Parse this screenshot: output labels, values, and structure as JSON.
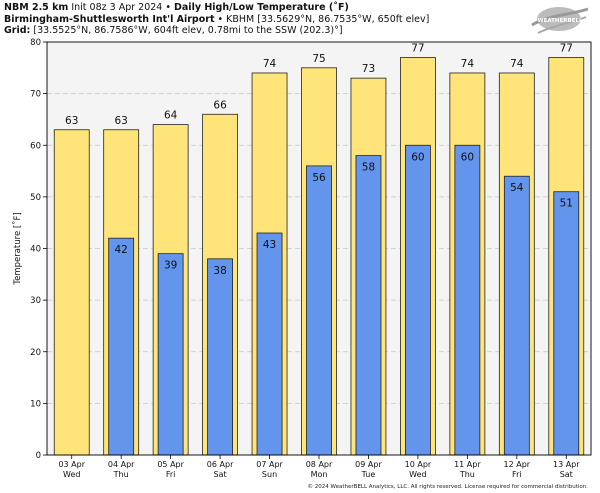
{
  "header": {
    "line1_bold": "NBM 2.5 km",
    "line1_init": "Init 08z 3 Apr 2024",
    "line1_sep": "•",
    "line1_title": "Daily High/Low Temperature (˚F)",
    "line2_bold": "Birmingham-Shuttlesworth Int'l Airport",
    "line2_sep": "•",
    "line2_rest": "KBHM [33.5629°N, 86.7535°W, 650ft elev]",
    "line3_bold": "Grid:",
    "line3_rest": "[33.5525°N, 86.7586°W, 604ft elev, 0.78mi to the SSW (202.3)°]"
  },
  "logo": {
    "text": "WEATHERBELL"
  },
  "copyright": "© 2024 WeatherBELL Analytics, LLC. All rights reserved. License required for commercial distribution.",
  "colors": {
    "high": "#ffe47a",
    "low": "#6495ed",
    "plot_bg": "#f4f4f4",
    "grid": "#c8c8c8"
  },
  "chart_data": {
    "type": "bar",
    "ylabel": "Temperature [˚F]",
    "ylim": [
      0,
      80
    ],
    "yticks": [
      0,
      10,
      20,
      30,
      40,
      50,
      60,
      70,
      80
    ],
    "grid": true,
    "categories": [
      "03 Apr",
      "04 Apr",
      "05 Apr",
      "06 Apr",
      "07 Apr",
      "08 Apr",
      "09 Apr",
      "10 Apr",
      "11 Apr",
      "12 Apr",
      "13 Apr"
    ],
    "days": [
      "Wed",
      "Thu",
      "Fri",
      "Sat",
      "Sun",
      "Mon",
      "Tue",
      "Wed",
      "Thu",
      "Fri",
      "Sat"
    ],
    "series": [
      {
        "values": [
          63,
          63,
          64,
          66,
          74,
          75,
          73,
          77,
          74,
          74,
          77
        ]
      },
      {
        "values": [
          null,
          42,
          39,
          38,
          43,
          56,
          58,
          60,
          60,
          54,
          51
        ]
      }
    ]
  }
}
